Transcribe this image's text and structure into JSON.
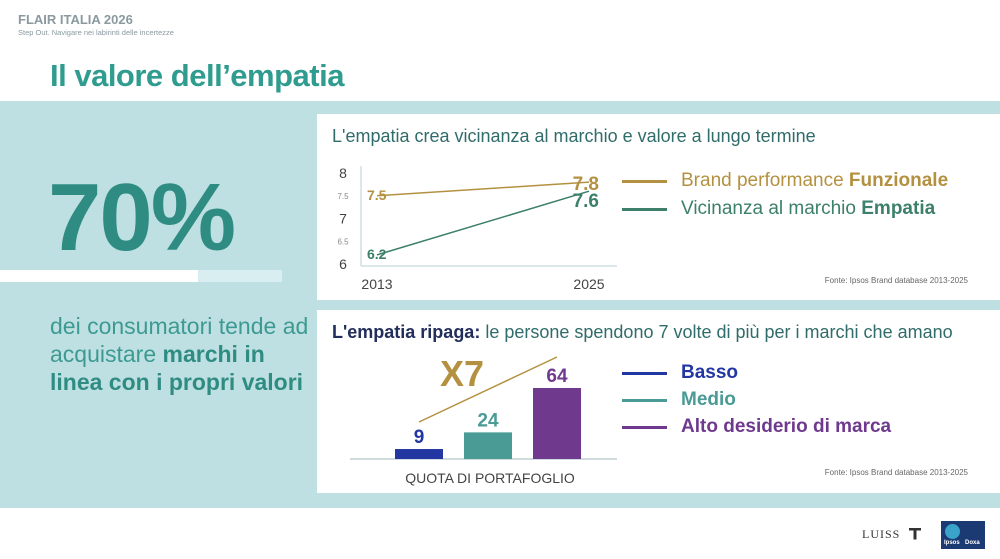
{
  "header": {
    "title": "FLAIR ITALIA 2026",
    "subtitle": "Step Out. Navigare nei labirinti delle incertezze"
  },
  "main_title": "Il valore dell’empatia",
  "kpi": {
    "value": "70%",
    "text_normal": "dei consumatori tende ad acquistare",
    "text_bold": "marchi in linea con i propri valori"
  },
  "chart_data": [
    {
      "type": "line",
      "title": "L'empatia crea vicinanza al marchio e valore a lungo termine",
      "x": [
        "2013",
        "2025"
      ],
      "yticks": [
        "8",
        "7.5",
        "7",
        "6.5",
        "6"
      ],
      "ylim": [
        6,
        8
      ],
      "series": [
        {
          "name": "Brand performance Funzionale",
          "name_prefix": "Brand performance ",
          "name_bold": "Funzionale",
          "values": [
            7.5,
            7.8
          ],
          "labels": [
            "7.5",
            "7.8"
          ],
          "color": "#b39140"
        },
        {
          "name": "Vicinanza al marchio Empatia",
          "name_prefix": "Vicinanza al marchio ",
          "name_bold": "Empatia",
          "values": [
            6.2,
            7.6
          ],
          "labels": [
            "6.2",
            "7.6"
          ],
          "color": "#3c7f6a"
        }
      ],
      "source": "Fonte: Ipsos Brand database 2013-2025"
    },
    {
      "type": "bar",
      "title_bold": "L'empatia ripaga:",
      "title_rest": " le persone spendono 7 volte di più per i marchi che amano",
      "categories": [
        "Basso",
        "Medio",
        "Alto desiderio  di marca"
      ],
      "values": [
        9,
        24,
        64
      ],
      "labels": [
        "9",
        "24",
        "64"
      ],
      "colors": [
        "#2337a3",
        "#4a9a96",
        "#6f3a8e"
      ],
      "xlabel": "QUOTA DI PORTAFOGLIO",
      "ylim": [
        0,
        64
      ],
      "annotation": "X7",
      "annotation_color": "#b39140",
      "source": "Fonte: Ipsos Brand database 2013-2025"
    }
  ],
  "footer": {
    "luiss": "LUISS",
    "ipsos": "Ipsos",
    "doxa": "Doxa"
  }
}
